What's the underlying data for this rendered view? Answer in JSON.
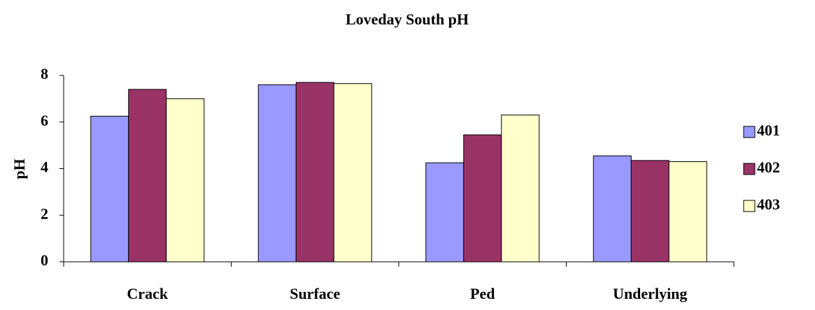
{
  "chart_data": {
    "type": "bar",
    "title": "Loveday South pH",
    "y_label": "pH",
    "categories": [
      "Crack",
      "Surface",
      "Ped",
      "Underlying"
    ],
    "series": [
      {
        "name": "401",
        "color": "#9999ff",
        "values": [
          6.25,
          7.6,
          4.25,
          4.55
        ]
      },
      {
        "name": "402",
        "color": "#993366",
        "values": [
          7.4,
          7.7,
          5.45,
          4.35
        ]
      },
      {
        "name": "403",
        "color": "#ffffcc",
        "values": [
          7.0,
          7.65,
          6.3,
          4.3
        ]
      }
    ],
    "ylim": [
      0,
      8
    ],
    "yticks": [
      0,
      2,
      4,
      6,
      8
    ],
    "grid": false,
    "legend": "right"
  }
}
